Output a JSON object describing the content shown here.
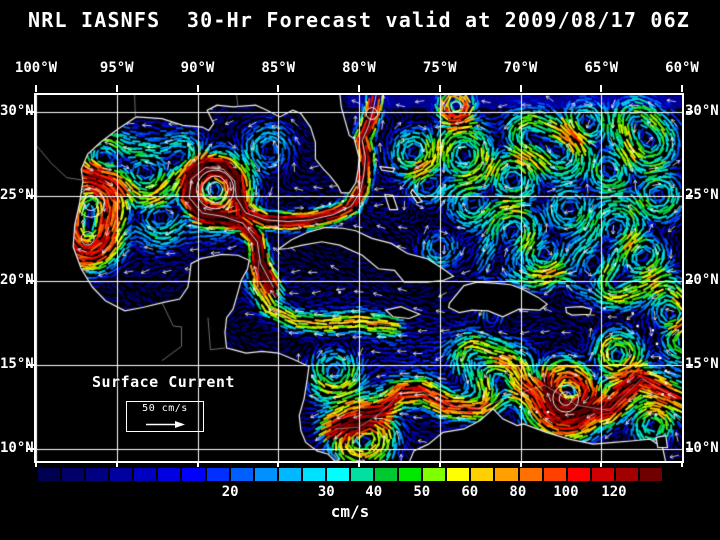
{
  "title": "NRL IASNFS  30-Hr Forecast valid at 2009/08/17 06Z",
  "map": {
    "lon_labels": [
      "100°W",
      "95°W",
      "90°W",
      "85°W",
      "80°W",
      "75°W",
      "70°W",
      "65°W",
      "60°W"
    ],
    "lat_labels": [
      "30°N",
      "25°N",
      "20°N",
      "15°N",
      "10°N"
    ],
    "legend_title": "Surface Current",
    "scale_label": "50 cm/s"
  },
  "colorbar": {
    "unit": "cm/s",
    "tick_labels": [
      "20",
      "30",
      "40",
      "50",
      "60",
      "80",
      "100",
      "120"
    ],
    "tick_positions_pct": [
      30.8,
      46.2,
      53.8,
      61.5,
      69.2,
      76.9,
      84.6,
      92.3
    ],
    "colors": [
      "#000050",
      "#000068",
      "#000080",
      "#0000a0",
      "#0000c0",
      "#0000e0",
      "#0000ff",
      "#0030ff",
      "#0060ff",
      "#0090ff",
      "#00b8ff",
      "#00e0ff",
      "#00ffff",
      "#00e0a0",
      "#00c830",
      "#00e800",
      "#80ff00",
      "#ffff00",
      "#ffd000",
      "#ffa000",
      "#ff7000",
      "#ff4000",
      "#ff0000",
      "#d00000",
      "#a00000",
      "#700000"
    ]
  },
  "colors": {
    "background": "#000000",
    "text": "#ffffff",
    "grid": "#ffffff",
    "coastline": "#f0f0f0",
    "band_north": "#000090"
  }
}
